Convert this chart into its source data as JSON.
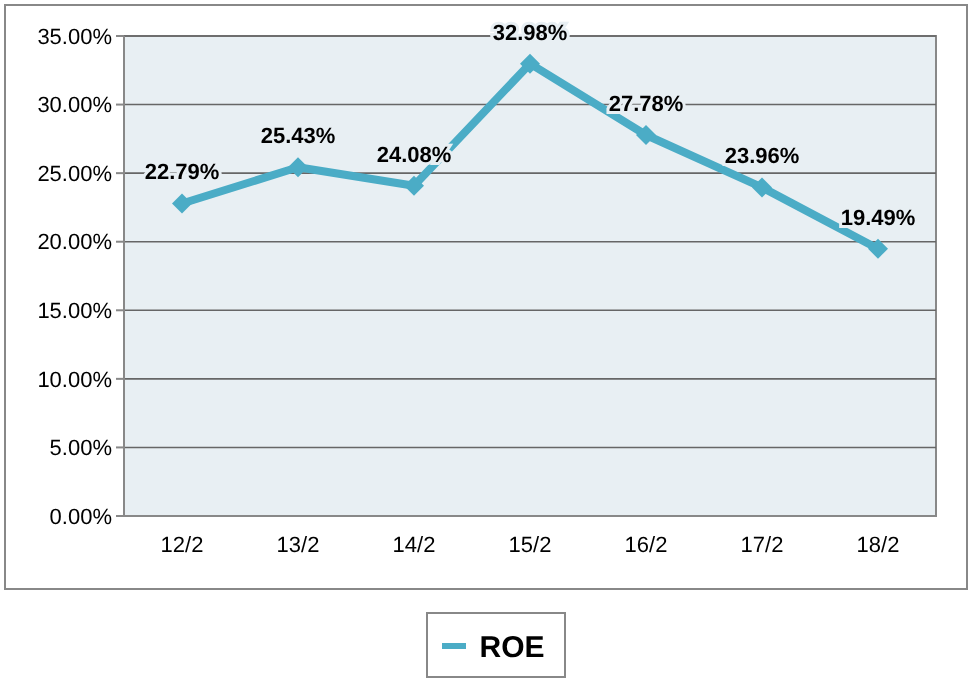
{
  "chart_data": {
    "type": "line",
    "categories": [
      "12/2",
      "13/2",
      "14/2",
      "15/2",
      "16/2",
      "17/2",
      "18/2"
    ],
    "series": [
      {
        "name": "ROE",
        "color": "#4bacc6",
        "values": [
          22.79,
          25.43,
          24.08,
          32.98,
          27.78,
          23.96,
          19.49
        ],
        "value_labels": [
          "22.79%",
          "25.43%",
          "24.08%",
          "32.98%",
          "27.78%",
          "23.96%",
          "19.49%"
        ]
      }
    ],
    "ylim": [
      0,
      35
    ],
    "yticks": [
      {
        "value": 0,
        "label": "0.00%"
      },
      {
        "value": 5,
        "label": "5.00%"
      },
      {
        "value": 10,
        "label": "10.00%"
      },
      {
        "value": 15,
        "label": "15.00%"
      },
      {
        "value": 20,
        "label": "20.00%"
      },
      {
        "value": 25,
        "label": "25.00%"
      },
      {
        "value": 30,
        "label": "30.00%"
      },
      {
        "value": 35,
        "label": "35.00%"
      }
    ],
    "grid": "y",
    "legend": "bottom",
    "marker": "diamond",
    "line_style": "solid"
  }
}
